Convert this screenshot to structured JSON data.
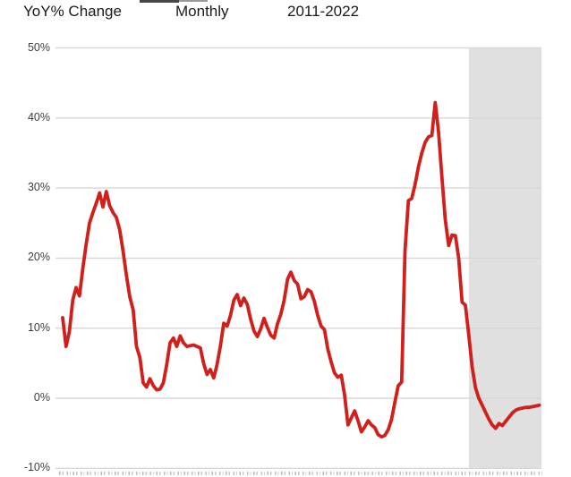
{
  "header": {
    "title": "YoY% Change",
    "frequency": "Monthly",
    "period": "2011-2022"
  },
  "colors": {
    "line_red": "#d1201c",
    "shaded_band": "#e0e0e0",
    "gridline": "#d8d8d8",
    "title_text": "#1a1a1a",
    "axis_label_text": "#3d3d3d"
  },
  "chart_data": {
    "type": "line",
    "title": "YoY% Change",
    "subtitle_frequency": "Monthly",
    "subtitle_period": "2011-2022",
    "ylabel": "YoY % change",
    "ylim": [
      -10,
      50
    ],
    "yticks": [
      50,
      40,
      30,
      20,
      10,
      0,
      -10
    ],
    "ytick_labels": [
      "50%",
      "40%",
      "30%",
      "20%",
      "10%",
      "0%",
      "-10%"
    ],
    "grid": "horizontal",
    "legend": "none",
    "x_start_label": "2011",
    "x_end_label": "2022",
    "x_step": "monthly",
    "x_axis_tick_labels_cut_off": true,
    "shaded_region": {
      "x_start_fraction": 0.849,
      "x_end_fraction": 1.0,
      "color": "#e0e0e0"
    },
    "series": [
      {
        "name": "YoY % change (monthly)",
        "color": "#d1201c",
        "values": [
          11.5,
          7.4,
          9.5,
          14.0,
          15.8,
          14.6,
          18.5,
          22.0,
          25.0,
          26.5,
          27.8,
          29.3,
          27.3,
          29.5,
          27.5,
          26.5,
          25.8,
          24.0,
          21.0,
          17.5,
          14.5,
          12.6,
          7.4,
          5.8,
          2.2,
          1.6,
          2.8,
          1.8,
          1.2,
          1.3,
          2.2,
          4.8,
          7.9,
          8.6,
          7.4,
          8.9,
          7.9,
          7.4,
          7.5,
          7.6,
          7.4,
          7.2,
          5.0,
          3.4,
          4.1,
          2.9,
          4.8,
          7.5,
          10.7,
          10.3,
          11.8,
          14.0,
          14.8,
          13.2,
          14.3,
          13.4,
          11.3,
          9.6,
          8.8,
          9.9,
          11.4,
          10.1,
          9.0,
          8.6,
          10.6,
          12.0,
          14.0,
          17.0,
          18.0,
          16.8,
          16.3,
          14.2,
          14.5,
          15.5,
          15.2,
          13.8,
          11.8,
          10.3,
          9.8,
          7.0,
          5.2,
          3.6,
          3.0,
          3.3,
          0.5,
          -3.8,
          -2.8,
          -1.8,
          -3.2,
          -4.8,
          -4.1,
          -3.2,
          -3.8,
          -4.2,
          -5.2,
          -5.5,
          -5.3,
          -4.5,
          -3.0,
          -0.5,
          1.8,
          2.3,
          21.0,
          28.2,
          28.5,
          30.5,
          33.0,
          35.0,
          36.5,
          37.3,
          37.5,
          42.2,
          38.0,
          31.5,
          25.5,
          21.8,
          23.3,
          23.2,
          20.0,
          13.7,
          13.3,
          9.0,
          4.5,
          1.5,
          0.0,
          -1.0,
          -2.0,
          -3.0,
          -3.8,
          -4.3,
          -3.6,
          -3.9,
          -3.3,
          -2.7,
          -2.1,
          -1.7,
          -1.5,
          -1.4,
          -1.3,
          -1.3,
          -1.2,
          -1.1,
          -1.0
        ]
      }
    ]
  }
}
